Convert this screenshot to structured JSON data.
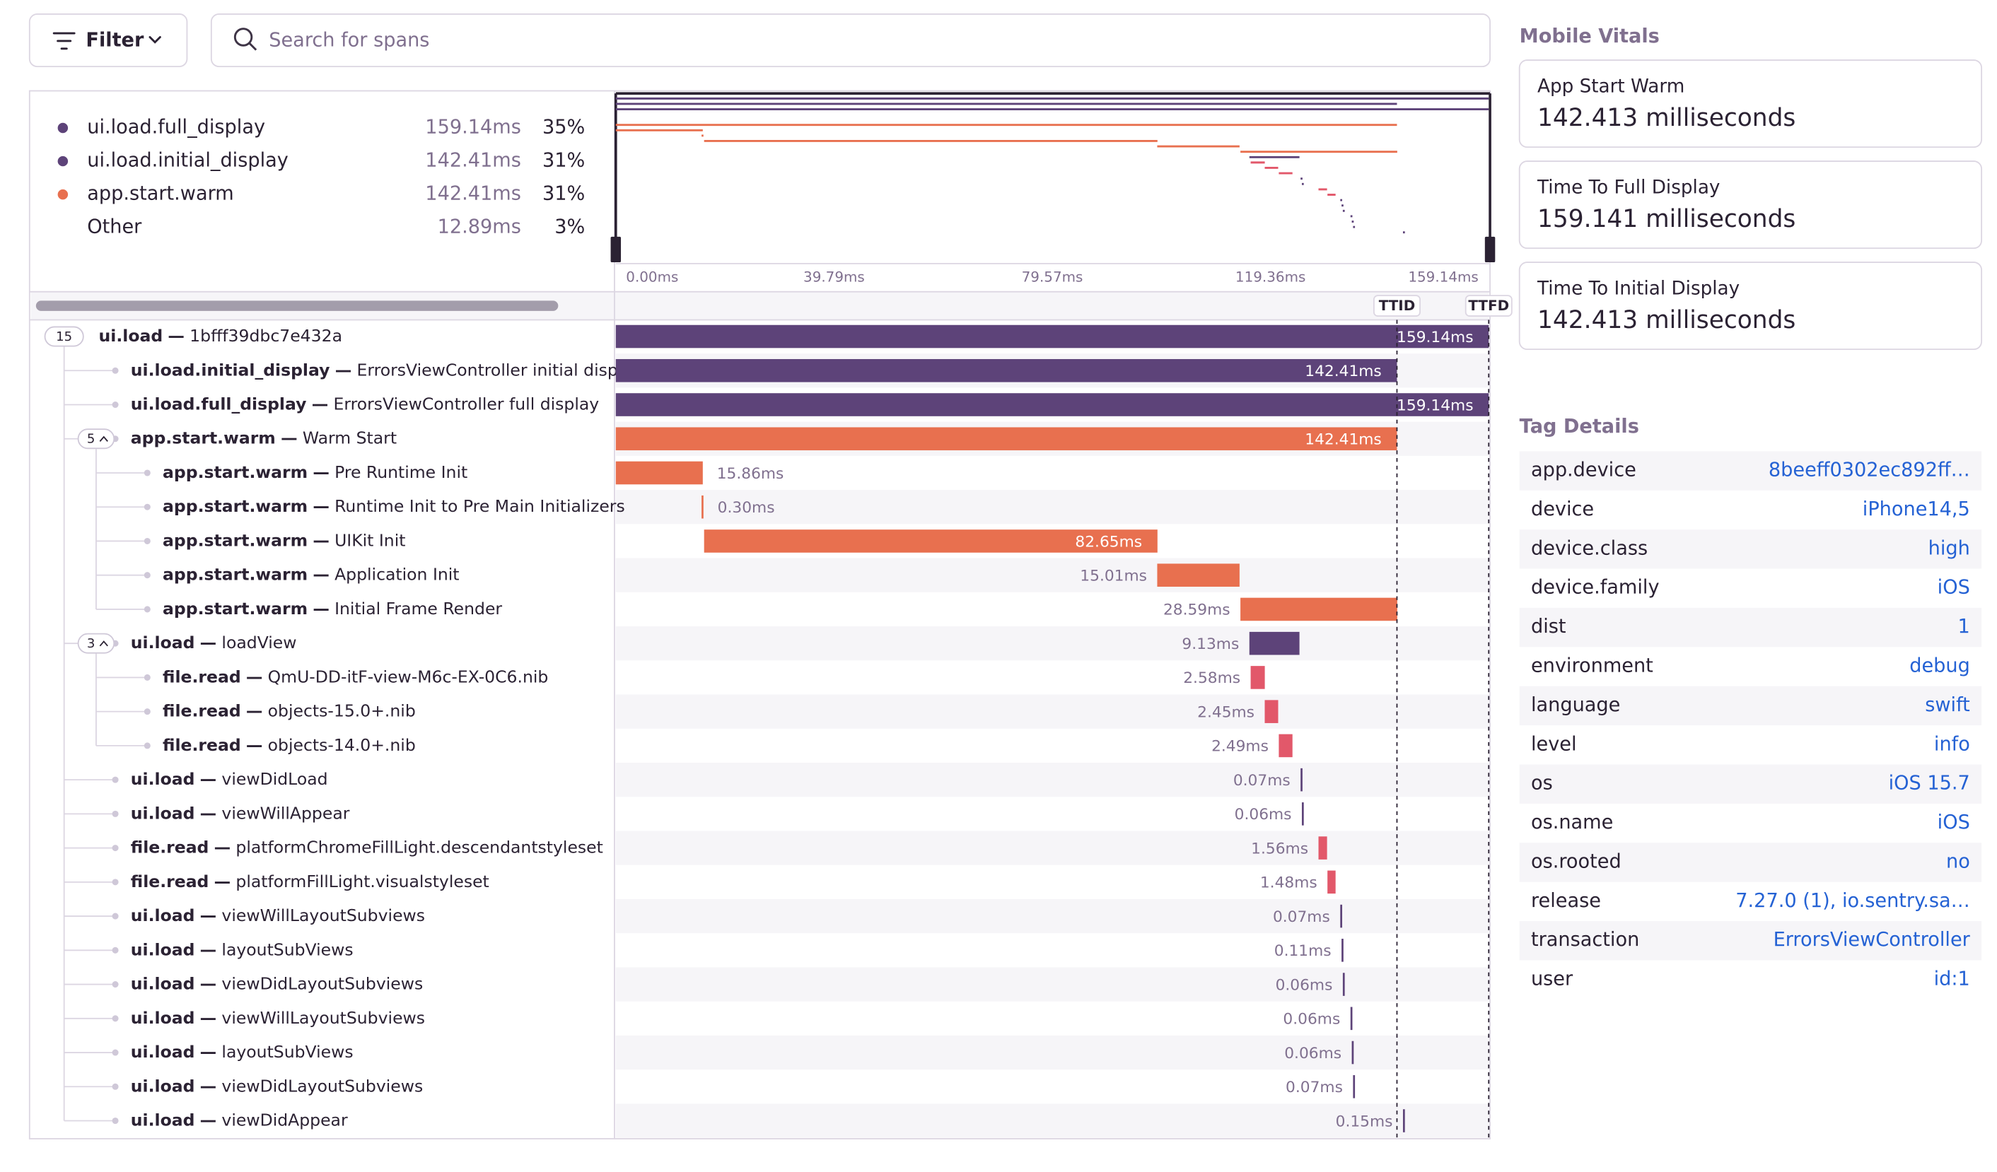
{
  "toolbar": {
    "filter": "Filter",
    "search_placeholder": "Search for spans"
  },
  "ops_breakdown": [
    {
      "name": "ui.load.full_display",
      "duration": "159.14ms",
      "percent": "35%",
      "color": "#5d4379"
    },
    {
      "name": "ui.load.initial_display",
      "duration": "142.41ms",
      "percent": "31%",
      "color": "#5d4379"
    },
    {
      "name": "app.start.warm",
      "duration": "142.41ms",
      "percent": "31%",
      "color": "#e8704f"
    },
    {
      "name": "Other",
      "duration": "12.89ms",
      "percent": "3%"
    }
  ],
  "timeline": {
    "ticks": [
      "0.00ms",
      "39.79ms",
      "79.57ms",
      "119.36ms",
      "159.14ms"
    ],
    "markers": [
      "TTID",
      "TTFD"
    ]
  },
  "op_colors": {
    "ui.load": "#5d4379",
    "ui.load.initial_display": "#5d4379",
    "ui.load.full_display": "#5d4379",
    "app.start.warm": "#e8704f",
    "file.read": "#e2586a"
  },
  "separator": "—",
  "spans": {
    "op": "ui.load",
    "description": "1bfff39dbc7e432a",
    "duration": 159.14,
    "duration_label": "159.14ms",
    "count": 15,
    "children": [
      {
        "op": "ui.load.initial_display",
        "description": "ErrorsViewController initial display",
        "duration": 142.41,
        "duration_label": "142.41ms"
      },
      {
        "op": "ui.load.full_display",
        "description": "ErrorsViewController full display",
        "duration": 159.14,
        "duration_label": "159.14ms"
      },
      {
        "op": "app.start.warm",
        "description": "Warm Start",
        "duration": 142.41,
        "duration_label": "142.41ms",
        "count": 5,
        "children": [
          {
            "op": "app.start.warm",
            "description": "Pre Runtime Init",
            "duration": 15.86,
            "duration_label": "15.86ms"
          },
          {
            "op": "app.start.warm",
            "description": "Runtime Init to Pre Main Initializers",
            "duration": 0.3,
            "duration_label": "0.30ms"
          },
          {
            "op": "app.start.warm",
            "description": "UIKit Init",
            "duration": 82.65,
            "duration_label": "82.65ms"
          },
          {
            "op": "app.start.warm",
            "description": "Application Init",
            "duration": 15.01,
            "duration_label": "15.01ms"
          },
          {
            "op": "app.start.warm",
            "description": "Initial Frame Render",
            "duration": 28.59,
            "duration_label": "28.59ms"
          }
        ]
      },
      {
        "op": "ui.load",
        "description": "loadView",
        "duration": 9.13,
        "duration_label": "9.13ms",
        "count": 3,
        "children": [
          {
            "op": "file.read",
            "description": "QmU-DD-itF-view-M6c-EX-0C6.nib",
            "duration": 2.58,
            "duration_label": "2.58ms"
          },
          {
            "op": "file.read",
            "description": "objects-15.0+.nib",
            "duration": 2.45,
            "duration_label": "2.45ms"
          },
          {
            "op": "file.read",
            "description": "objects-14.0+.nib",
            "duration": 2.49,
            "duration_label": "2.49ms"
          }
        ]
      },
      {
        "op": "ui.load",
        "description": "viewDidLoad",
        "duration": 0.07,
        "duration_label": "0.07ms"
      },
      {
        "op": "ui.load",
        "description": "viewWillAppear",
        "duration": 0.06,
        "duration_label": "0.06ms"
      },
      {
        "op": "file.read",
        "description": "platformChromeFillLight.descendantstyleset",
        "duration": 1.56,
        "duration_label": "1.56ms"
      },
      {
        "op": "file.read",
        "description": "platformFillLight.visualstyleset",
        "duration": 1.48,
        "duration_label": "1.48ms"
      },
      {
        "op": "ui.load",
        "description": "viewWillLayoutSubviews",
        "duration": 0.07,
        "duration_label": "0.07ms"
      },
      {
        "op": "ui.load",
        "description": "layoutSubViews",
        "duration": 0.11,
        "duration_label": "0.11ms"
      },
      {
        "op": "ui.load",
        "description": "viewDidLayoutSubviews",
        "duration": 0.06,
        "duration_label": "0.06ms"
      },
      {
        "op": "ui.load",
        "description": "viewWillLayoutSubviews",
        "duration": 0.06,
        "duration_label": "0.06ms"
      },
      {
        "op": "ui.load",
        "description": "layoutSubViews",
        "duration": 0.06,
        "duration_label": "0.06ms"
      },
      {
        "op": "ui.load",
        "description": "viewDidLayoutSubviews",
        "duration": 0.07,
        "duration_label": "0.07ms"
      },
      {
        "op": "ui.load",
        "description": "viewDidAppear",
        "duration": 0.15,
        "duration_label": "0.15ms"
      }
    ]
  },
  "mobile_vitals": {
    "title": "Mobile Vitals",
    "items": [
      {
        "name": "App Start Warm",
        "value": "142.413 milliseconds"
      },
      {
        "name": "Time To Full Display",
        "value": "159.141 milliseconds"
      },
      {
        "name": "Time To Initial Display",
        "value": "142.413 milliseconds"
      }
    ]
  },
  "tag_details": {
    "title": "Tag Details",
    "rows": [
      [
        "app.device",
        "8beeff0302ec892ff…"
      ],
      [
        "device",
        "iPhone14,5"
      ],
      [
        "device.class",
        "high"
      ],
      [
        "device.family",
        "iOS"
      ],
      [
        "dist",
        "1"
      ],
      [
        "environment",
        "debug"
      ],
      [
        "language",
        "swift"
      ],
      [
        "level",
        "info"
      ],
      [
        "os",
        "iOS 15.7"
      ],
      [
        "os.name",
        "iOS"
      ],
      [
        "os.rooted",
        "no"
      ],
      [
        "release",
        "7.27.0 (1), io.sentry.sa…"
      ],
      [
        "transaction",
        "ErrorsViewController"
      ],
      [
        "user",
        "id:1"
      ]
    ]
  }
}
